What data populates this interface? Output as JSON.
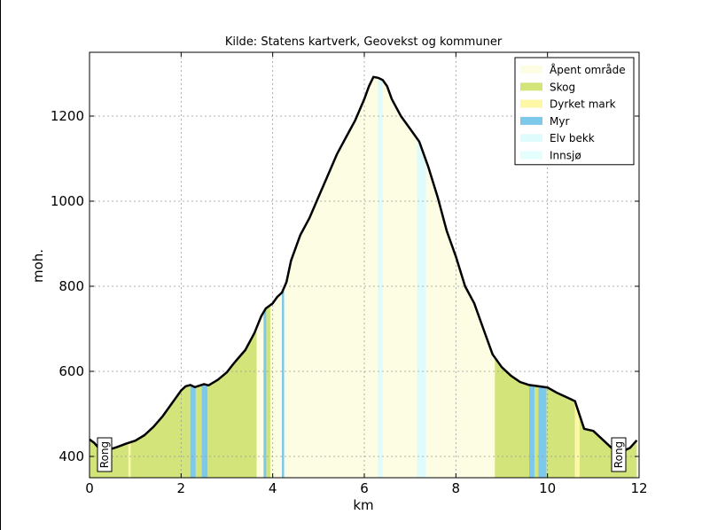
{
  "chart_data": {
    "type": "area",
    "title": "Kilde: Statens kartverk, Geovekst og kommuner",
    "xlabel": "km",
    "ylabel": "moh.",
    "xlim": [
      0,
      12
    ],
    "ylim": [
      350,
      1350
    ],
    "xticks": [
      0,
      2,
      4,
      6,
      8,
      10,
      12
    ],
    "yticks": [
      400,
      600,
      800,
      1000,
      1200
    ],
    "grid": true,
    "legend_position": "top-right",
    "legend": [
      {
        "label": "Åpent område",
        "color": "#fcfde3"
      },
      {
        "label": "Skog",
        "color": "#d2e47a"
      },
      {
        "label": "Dyrket mark",
        "color": "#fdf7a6"
      },
      {
        "label": "Myr",
        "color": "#7ec8ea"
      },
      {
        "label": "Elv bekk",
        "color": "#e0fbfb"
      },
      {
        "label": "Innsjø",
        "color": "#e4fdfd"
      }
    ],
    "land_cover": [
      {
        "from": 0.0,
        "to": 0.85,
        "type": "Skog"
      },
      {
        "from": 0.85,
        "to": 0.9,
        "type": "Dyrket mark"
      },
      {
        "from": 0.9,
        "to": 2.2,
        "type": "Skog"
      },
      {
        "from": 2.2,
        "to": 2.32,
        "type": "Myr"
      },
      {
        "from": 2.32,
        "to": 2.45,
        "type": "Skog"
      },
      {
        "from": 2.45,
        "to": 2.58,
        "type": "Myr"
      },
      {
        "from": 2.58,
        "to": 3.65,
        "type": "Skog"
      },
      {
        "from": 3.65,
        "to": 3.8,
        "type": "Åpent område"
      },
      {
        "from": 3.8,
        "to": 3.86,
        "type": "Myr"
      },
      {
        "from": 3.86,
        "to": 3.95,
        "type": "Skog"
      },
      {
        "from": 3.95,
        "to": 4.2,
        "type": "Åpent område"
      },
      {
        "from": 4.2,
        "to": 4.25,
        "type": "Myr"
      },
      {
        "from": 4.25,
        "to": 6.3,
        "type": "Åpent område"
      },
      {
        "from": 6.3,
        "to": 6.4,
        "type": "Elv bekk"
      },
      {
        "from": 6.4,
        "to": 7.15,
        "type": "Åpent område"
      },
      {
        "from": 7.15,
        "to": 7.35,
        "type": "Elv bekk"
      },
      {
        "from": 7.35,
        "to": 8.85,
        "type": "Åpent område"
      },
      {
        "from": 8.85,
        "to": 9.6,
        "type": "Skog"
      },
      {
        "from": 9.6,
        "to": 9.72,
        "type": "Myr"
      },
      {
        "from": 9.72,
        "to": 9.8,
        "type": "Skog"
      },
      {
        "from": 9.8,
        "to": 9.98,
        "type": "Myr"
      },
      {
        "from": 9.98,
        "to": 10.6,
        "type": "Skog"
      },
      {
        "from": 10.6,
        "to": 10.7,
        "type": "Dyrket mark"
      },
      {
        "from": 10.7,
        "to": 11.95,
        "type": "Skog"
      }
    ],
    "x": [
      0,
      0.1,
      0.2,
      0.4,
      0.6,
      0.8,
      1.0,
      1.2,
      1.4,
      1.6,
      1.8,
      2.0,
      2.1,
      2.2,
      2.3,
      2.5,
      2.6,
      2.8,
      3.0,
      3.1,
      3.2,
      3.4,
      3.6,
      3.75,
      3.85,
      4.0,
      4.1,
      4.2,
      4.3,
      4.4,
      4.6,
      4.8,
      5.0,
      5.2,
      5.4,
      5.6,
      5.8,
      6.0,
      6.1,
      6.2,
      6.3,
      6.4,
      6.5,
      6.6,
      6.8,
      7.0,
      7.2,
      7.4,
      7.6,
      7.8,
      8.0,
      8.2,
      8.4,
      8.6,
      8.8,
      9.0,
      9.2,
      9.4,
      9.6,
      9.8,
      10.0,
      10.2,
      10.4,
      10.6,
      10.8,
      11.0,
      11.2,
      11.4,
      11.6,
      11.8,
      11.95
    ],
    "y": [
      440,
      432,
      420,
      415,
      422,
      430,
      437,
      450,
      470,
      495,
      525,
      555,
      565,
      568,
      563,
      570,
      567,
      580,
      598,
      612,
      625,
      650,
      690,
      730,
      748,
      760,
      775,
      785,
      810,
      860,
      920,
      960,
      1010,
      1060,
      1110,
      1150,
      1190,
      1240,
      1270,
      1292,
      1290,
      1285,
      1270,
      1240,
      1200,
      1170,
      1140,
      1080,
      1010,
      930,
      870,
      800,
      760,
      700,
      640,
      610,
      590,
      575,
      568,
      565,
      562,
      550,
      540,
      530,
      465,
      460,
      440,
      420,
      410,
      420,
      438
    ]
  },
  "places": {
    "start": "Rong",
    "end": "Rong"
  }
}
